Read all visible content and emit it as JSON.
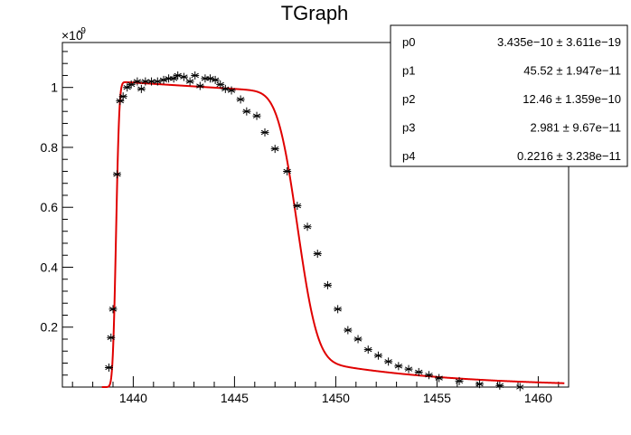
{
  "chart_data": {
    "type": "scatter",
    "title": "TGraph",
    "xlabel": "",
    "ylabel": "",
    "y_multiplier_label": "×10",
    "y_multiplier_exponent": "-9",
    "xlim": [
      1436.5,
      1461.5
    ],
    "ylim": [
      0.0,
      1.15
    ],
    "x_ticks": [
      1440,
      1445,
      1450,
      1455,
      1460
    ],
    "x_tick_labels": [
      "1440",
      "1445",
      "1450",
      "1455",
      "1460"
    ],
    "y_ticks": [
      0.2,
      0.4,
      0.6,
      0.8,
      1.0
    ],
    "y_tick_labels": [
      "0.2",
      "0.4",
      "0.6",
      "0.8",
      "1"
    ],
    "marker": "asterisk",
    "marker_color": "#000000",
    "fit_color": "#e00000",
    "grid": false,
    "series": [
      {
        "x": [
          1438.8,
          1438.9,
          1439.0,
          1439.2,
          1439.35,
          1439.5,
          1439.7,
          1439.9,
          1440.2,
          1440.4,
          1440.6,
          1440.9,
          1441.2,
          1441.5,
          1441.75,
          1442.0,
          1442.2,
          1442.5,
          1442.8,
          1443.05,
          1443.3,
          1443.55,
          1443.8,
          1444.05,
          1444.3,
          1444.55,
          1444.85,
          1445.3,
          1445.6,
          1446.1,
          1446.5,
          1447.0,
          1447.6,
          1448.1,
          1448.6,
          1449.1,
          1449.6,
          1450.1,
          1450.6,
          1451.1,
          1451.6,
          1452.1,
          1452.6,
          1453.1,
          1453.6,
          1454.1,
          1454.6,
          1455.1,
          1456.1,
          1457.1,
          1458.1,
          1459.1,
          1460.1
        ],
        "y": [
          0.065,
          0.165,
          0.26,
          0.71,
          0.955,
          0.97,
          1.0,
          1.01,
          1.02,
          0.995,
          1.02,
          1.02,
          1.02,
          1.025,
          1.03,
          1.03,
          1.04,
          1.035,
          1.02,
          1.04,
          1.005,
          1.03,
          1.03,
          1.025,
          1.01,
          0.995,
          0.99,
          0.96,
          0.92,
          0.905,
          0.85,
          0.795,
          0.72,
          0.605,
          0.535,
          0.445,
          0.34,
          0.26,
          0.19,
          0.16,
          0.125,
          0.105,
          0.085,
          0.07,
          0.06,
          0.05,
          0.04,
          0.03,
          0.02,
          0.01,
          0.005,
          0.0,
          -0.005
        ]
      }
    ],
    "fit_function": "p0 * erf((x - p1 - 1392.24)/p4... approximated)",
    "stats": [
      {
        "name": "p0",
        "value": "3.435e−10 ± 3.611e−19"
      },
      {
        "name": "p1",
        "value": "45.52 ± 1.947e−11"
      },
      {
        "name": "p2",
        "value": "12.46 ± 1.359e−10"
      },
      {
        "name": "p3",
        "value": "2.981 ± 9.67e−11"
      },
      {
        "name": "p4",
        "value": "0.2216 ± 3.238e−11"
      }
    ]
  }
}
